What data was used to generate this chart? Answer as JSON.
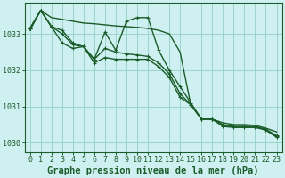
{
  "bg_color": "#cff0f0",
  "plot_bg_color": "#cff0f0",
  "grid_color": "#9dd4cc",
  "line_color": "#1a5c2a",
  "xlabel": "Graphe pression niveau de la mer (hPa)",
  "ylim": [
    1029.75,
    1033.85
  ],
  "xlim": [
    -0.5,
    23.5
  ],
  "yticks": [
    1030,
    1031,
    1032,
    1033
  ],
  "xticks": [
    0,
    1,
    2,
    3,
    4,
    5,
    6,
    7,
    8,
    9,
    10,
    11,
    12,
    13,
    14,
    15,
    16,
    17,
    18,
    19,
    20,
    21,
    22,
    23
  ],
  "series": [
    {
      "y": [
        1033.1,
        1033.65,
        1033.45,
        1033.4,
        1033.35,
        1033.3,
        1033.28,
        1033.25,
        1033.22,
        1033.2,
        1033.18,
        1033.15,
        1033.1,
        1033.0,
        1032.5,
        1031.05,
        1030.65,
        1030.65,
        1030.55,
        1030.5,
        1030.5,
        1030.48,
        1030.4,
        1030.3
      ],
      "marker": false,
      "lw": 1.0
    },
    {
      "y": [
        1033.15,
        1033.65,
        1033.2,
        1033.1,
        1032.75,
        1032.65,
        1032.3,
        1033.05,
        1032.55,
        1033.35,
        1033.45,
        1033.45,
        1032.55,
        1032.0,
        1031.55,
        1031.1,
        1030.65,
        1030.65,
        1030.5,
        1030.45,
        1030.45,
        1030.45,
        1030.35,
        1030.15
      ],
      "marker": true,
      "lw": 1.0
    },
    {
      "y": [
        1033.15,
        1033.65,
        1033.2,
        1032.75,
        1032.6,
        1032.65,
        1032.2,
        1032.35,
        1032.3,
        1032.3,
        1032.3,
        1032.3,
        1032.1,
        1031.8,
        1031.25,
        1031.05,
        1030.65,
        1030.65,
        1030.45,
        1030.42,
        1030.42,
        1030.42,
        1030.35,
        1030.18
      ],
      "marker": true,
      "lw": 1.0
    },
    {
      "y": [
        1033.15,
        1033.65,
        1033.2,
        1033.0,
        1032.7,
        1032.65,
        1032.3,
        1032.6,
        1032.5,
        1032.45,
        1032.42,
        1032.38,
        1032.2,
        1031.9,
        1031.35,
        1031.05,
        1030.65,
        1030.65,
        1030.47,
        1030.44,
        1030.44,
        1030.44,
        1030.37,
        1030.2
      ],
      "marker": true,
      "lw": 1.0
    }
  ],
  "xlabel_fontsize": 7.5,
  "tick_fontsize": 6.0,
  "marker_size": 2.5
}
